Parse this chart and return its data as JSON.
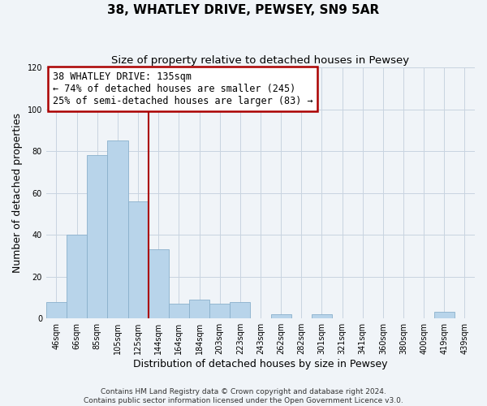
{
  "title": "38, WHATLEY DRIVE, PEWSEY, SN9 5AR",
  "subtitle": "Size of property relative to detached houses in Pewsey",
  "xlabel": "Distribution of detached houses by size in Pewsey",
  "ylabel": "Number of detached properties",
  "categories": [
    "46sqm",
    "66sqm",
    "85sqm",
    "105sqm",
    "125sqm",
    "144sqm",
    "164sqm",
    "184sqm",
    "203sqm",
    "223sqm",
    "243sqm",
    "262sqm",
    "282sqm",
    "301sqm",
    "321sqm",
    "341sqm",
    "360sqm",
    "380sqm",
    "400sqm",
    "419sqm",
    "439sqm"
  ],
  "values": [
    8,
    40,
    78,
    85,
    56,
    33,
    7,
    9,
    7,
    8,
    0,
    2,
    0,
    2,
    0,
    0,
    0,
    0,
    0,
    3,
    0
  ],
  "bar_color": "#b8d4ea",
  "bar_edge_color": "#8ab0cc",
  "vline_x": 4.5,
  "vline_color": "#aa0000",
  "annotation_line1": "38 WHATLEY DRIVE: 135sqm",
  "annotation_line2": "← 74% of detached houses are smaller (245)",
  "annotation_line3": "25% of semi-detached houses are larger (83) →",
  "annotation_box_color": "#ffffff",
  "annotation_box_edge_color": "#aa0000",
  "ylim": [
    0,
    120
  ],
  "yticks": [
    0,
    20,
    40,
    60,
    80,
    100,
    120
  ],
  "footer_line1": "Contains HM Land Registry data © Crown copyright and database right 2024.",
  "footer_line2": "Contains public sector information licensed under the Open Government Licence v3.0.",
  "bg_color": "#f0f4f8",
  "grid_color": "#c8d4e0",
  "title_fontsize": 11,
  "subtitle_fontsize": 9.5,
  "label_fontsize": 9,
  "tick_fontsize": 7,
  "annotation_fontsize": 8.5,
  "footer_fontsize": 6.5
}
